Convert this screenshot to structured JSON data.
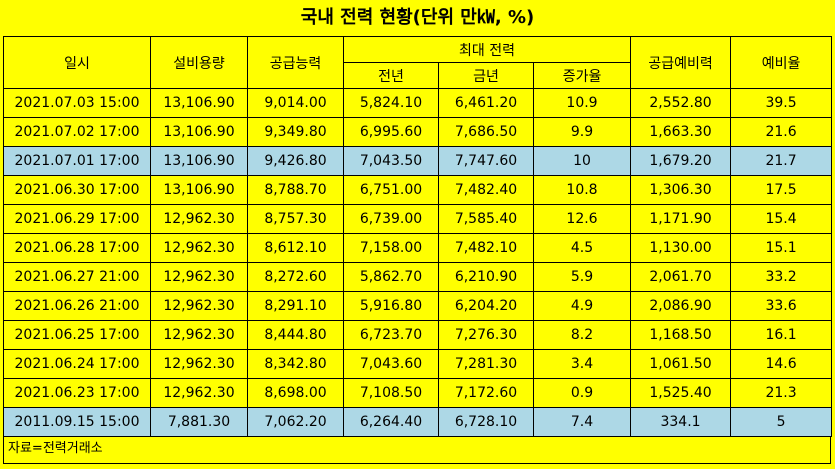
{
  "title": "국내 전력 현황(단위 만㎾, %)",
  "source_note": "자료=전력거래소",
  "chart_data": {
    "type": "table",
    "title": "국내 전력 현황(단위 만㎾, %)",
    "header_groups": {
      "max_power": "최대 전력"
    },
    "columns": [
      "일시",
      "설비용량",
      "공급능력",
      "전년",
      "금년",
      "증가율",
      "공급예비력",
      "예비율"
    ],
    "rows": [
      {
        "date": "2021.07.03 15:00",
        "capacity": "13,106.90",
        "supply": "9,014.00",
        "prev": "5,824.10",
        "curr": "6,461.20",
        "growth": "10.9",
        "reserve": "2,552.80",
        "ratio": "39.5",
        "highlight": false
      },
      {
        "date": "2021.07.02 17:00",
        "capacity": "13,106.90",
        "supply": "9,349.80",
        "prev": "6,995.60",
        "curr": "7,686.50",
        "growth": "9.9",
        "reserve": "1,663.30",
        "ratio": "21.6",
        "highlight": false
      },
      {
        "date": "2021.07.01 17:00",
        "capacity": "13,106.90",
        "supply": "9,426.80",
        "prev": "7,043.50",
        "curr": "7,747.60",
        "growth": "10",
        "reserve": "1,679.20",
        "ratio": "21.7",
        "highlight": true
      },
      {
        "date": "2021.06.30 17:00",
        "capacity": "13,106.90",
        "supply": "8,788.70",
        "prev": "6,751.00",
        "curr": "7,482.40",
        "growth": "10.8",
        "reserve": "1,306.30",
        "ratio": "17.5",
        "highlight": false
      },
      {
        "date": "2021.06.29 17:00",
        "capacity": "12,962.30",
        "supply": "8,757.30",
        "prev": "6,739.00",
        "curr": "7,585.40",
        "growth": "12.6",
        "reserve": "1,171.90",
        "ratio": "15.4",
        "highlight": false
      },
      {
        "date": "2021.06.28 17:00",
        "capacity": "12,962.30",
        "supply": "8,612.10",
        "prev": "7,158.00",
        "curr": "7,482.10",
        "growth": "4.5",
        "reserve": "1,130.00",
        "ratio": "15.1",
        "highlight": false
      },
      {
        "date": "2021.06.27 21:00",
        "capacity": "12,962.30",
        "supply": "8,272.60",
        "prev": "5,862.70",
        "curr": "6,210.90",
        "growth": "5.9",
        "reserve": "2,061.70",
        "ratio": "33.2",
        "highlight": false
      },
      {
        "date": "2021.06.26 21:00",
        "capacity": "12,962.30",
        "supply": "8,291.10",
        "prev": "5,916.80",
        "curr": "6,204.20",
        "growth": "4.9",
        "reserve": "2,086.90",
        "ratio": "33.6",
        "highlight": false
      },
      {
        "date": "2021.06.25 17:00",
        "capacity": "12,962.30",
        "supply": "8,444.80",
        "prev": "6,723.70",
        "curr": "7,276.30",
        "growth": "8.2",
        "reserve": "1,168.50",
        "ratio": "16.1",
        "highlight": false
      },
      {
        "date": "2021.06.24 17:00",
        "capacity": "12,962.30",
        "supply": "8,342.80",
        "prev": "7,043.60",
        "curr": "7,281.30",
        "growth": "3.4",
        "reserve": "1,061.50",
        "ratio": "14.6",
        "highlight": false
      },
      {
        "date": "2021.06.23 17:00",
        "capacity": "12,962.30",
        "supply": "8,698.00",
        "prev": "7,108.50",
        "curr": "7,172.60",
        "growth": "0.9",
        "reserve": "1,525.40",
        "ratio": "21.3",
        "highlight": false
      },
      {
        "date": "2011.09.15 15:00",
        "capacity": "7,881.30",
        "supply": "7,062.20",
        "prev": "6,264.40",
        "curr": "6,728.10",
        "growth": "7.4",
        "reserve": "334.1",
        "ratio": "5",
        "highlight": true
      }
    ]
  },
  "colors": {
    "background": "#FFFF00",
    "highlight_row": "#ADD8E6"
  }
}
